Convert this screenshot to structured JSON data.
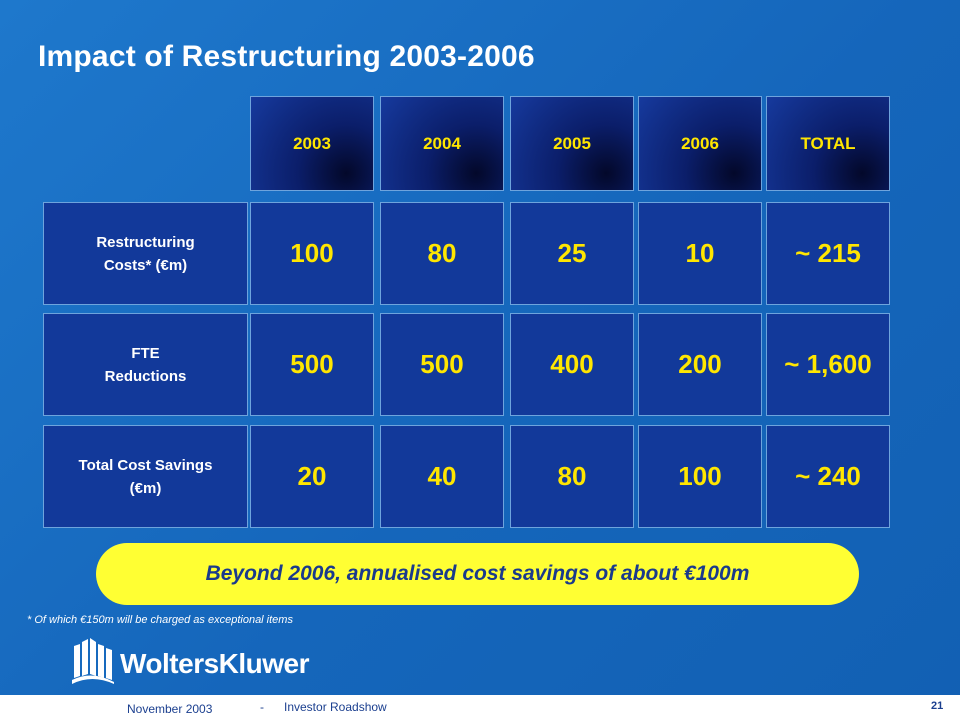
{
  "title": "Impact of Restructuring 2003-2006",
  "columns": [
    "2003",
    "2004",
    "2005",
    "2006",
    "TOTAL"
  ],
  "rows": [
    {
      "label": "Restructuring\nCosts* (€m)",
      "values": [
        "100",
        "80",
        "25",
        "10",
        "~ 215"
      ]
    },
    {
      "label": "FTE\nReductions",
      "values": [
        "500",
        "500",
        "400",
        "200",
        "~ 1,600"
      ]
    },
    {
      "label": "Total Cost Savings\n(€m)",
      "values": [
        "20",
        "40",
        "80",
        "100",
        "~ 240"
      ]
    }
  ],
  "callout": "Beyond 2006, annualised cost savings of about €100m",
  "footnote": "* Of which €150m will be charged as exceptional items",
  "logo_text": "WoltersKluwer",
  "footer": {
    "date": "November 2003",
    "separator": "-",
    "event": "Investor Roadshow",
    "page": "21"
  },
  "colors": {
    "background": "#1b6fc3",
    "cell": "#12399a",
    "value_text": "#ffe600",
    "callout_bg": "#ffff33",
    "callout_text": "#1a3a8c"
  }
}
